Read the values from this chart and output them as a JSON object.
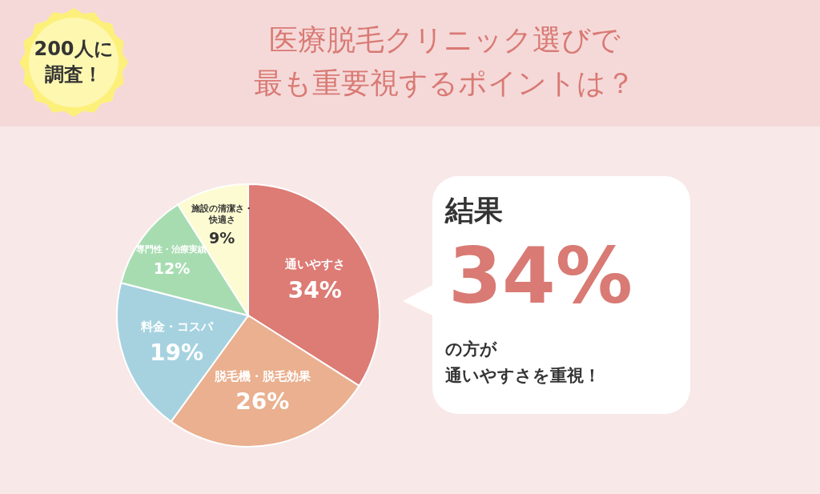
{
  "chart_data": {
    "type": "pie",
    "title": "医療脱毛クリニック選びで最も重要視するポイントは？",
    "categories": [
      "通いやすさ",
      "脱毛機・脱毛効果",
      "料金・コスパ",
      "専門性・治療実績",
      "施設の清潔さ・快適さ"
    ],
    "values": [
      34,
      26,
      19,
      12,
      9
    ],
    "colors": [
      "#dd7b75",
      "#eab08f",
      "#a6d2e0",
      "#a7dcb1",
      "#fcfbd2"
    ],
    "value_labels": [
      "34%",
      "26%",
      "19%",
      "12%",
      "9%"
    ],
    "annotations": [
      "200人に調査！",
      "結果",
      "34%",
      "の方が",
      "通いやすさを重視！"
    ]
  }
}
